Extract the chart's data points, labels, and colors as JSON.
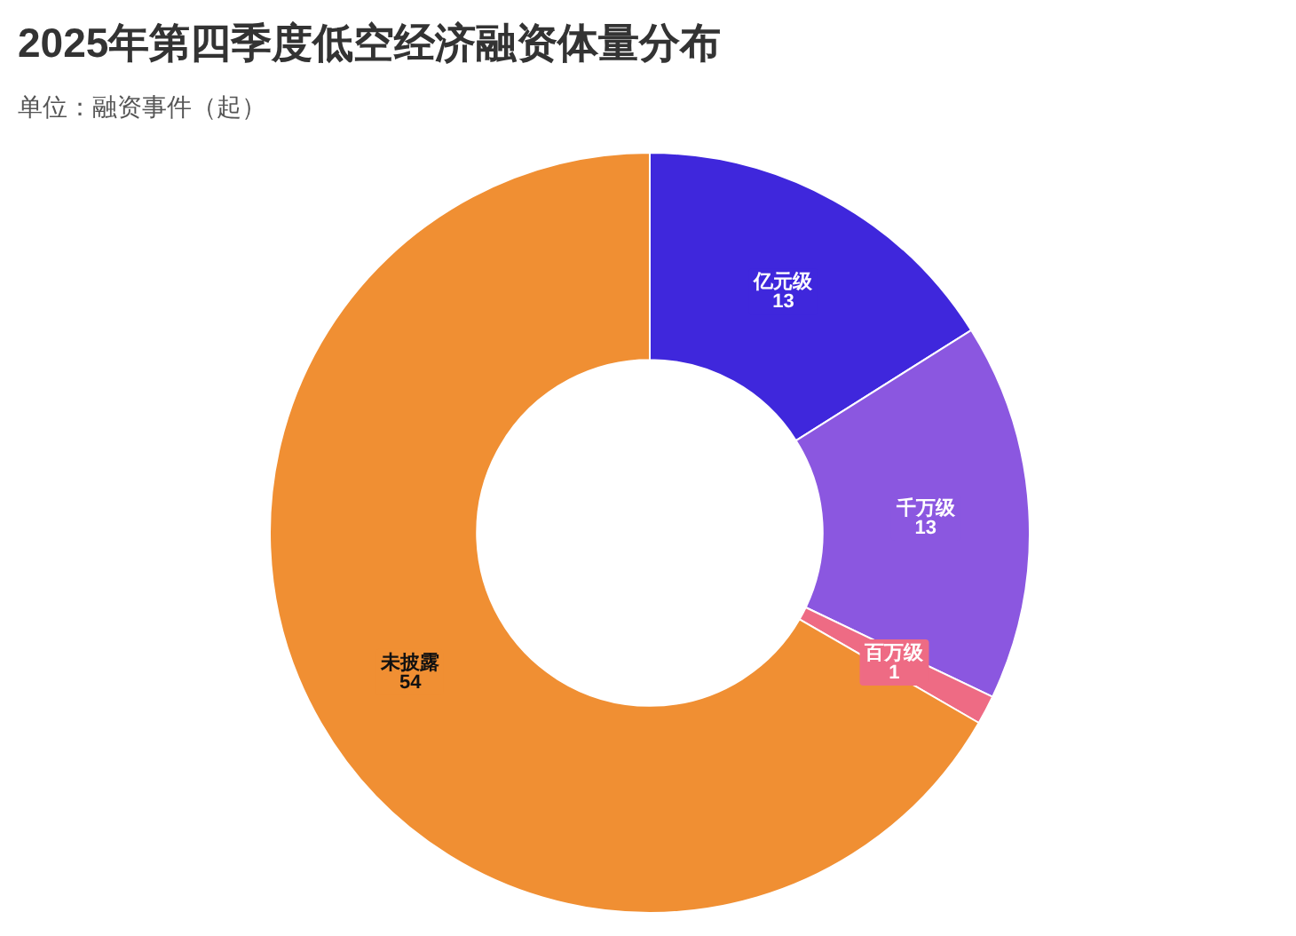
{
  "chart_data": {
    "type": "donut",
    "title": "2025年第四季度低空经济融资体量分布",
    "subtitle": "单位：融资事件（起）",
    "categories": [
      "亿元级",
      "千万级",
      "百万级",
      "未披露"
    ],
    "values": [
      13,
      13,
      1,
      54
    ],
    "colors": [
      "#3f27dc",
      "#8b57e0",
      "#ee6b84",
      "#f08f33"
    ],
    "data_labels": true
  }
}
